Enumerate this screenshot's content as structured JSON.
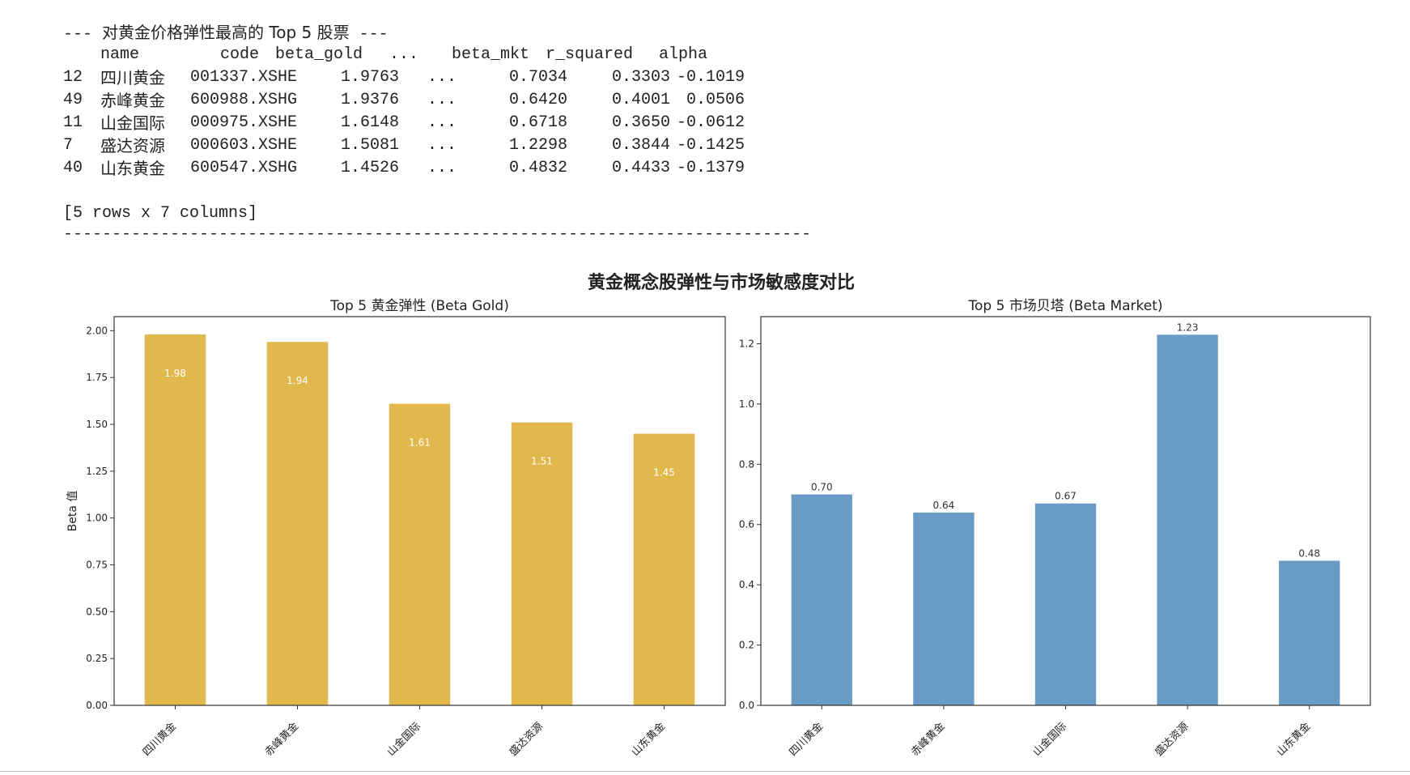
{
  "output": {
    "heading_prefix": "---",
    "heading_text": "对黄金价格弹性最高的 Top 5 股票",
    "heading_suffix": "---",
    "columns": [
      "name",
      "code",
      "beta_gold",
      "...",
      "beta_mkt",
      "r_squared",
      "alpha"
    ],
    "rows": [
      {
        "index": "12",
        "name": "四川黄金",
        "code": "001337.XSHE",
        "beta_gold": "1.9763",
        "dots": "...",
        "beta_mkt": "0.7034",
        "r_squared": "0.3303",
        "alpha": "-0.1019"
      },
      {
        "index": "49",
        "name": "赤峰黄金",
        "code": "600988.XSHG",
        "beta_gold": "1.9376",
        "dots": "...",
        "beta_mkt": "0.6420",
        "r_squared": "0.4001",
        "alpha": "0.0506"
      },
      {
        "index": "11",
        "name": "山金国际",
        "code": "000975.XSHE",
        "beta_gold": "1.6148",
        "dots": "...",
        "beta_mkt": "0.6718",
        "r_squared": "0.3650",
        "alpha": "-0.0612"
      },
      {
        "index": "7",
        "name": "盛达资源",
        "code": "000603.XSHE",
        "beta_gold": "1.5081",
        "dots": "...",
        "beta_mkt": "1.2298",
        "r_squared": "0.3844",
        "alpha": "-0.1425"
      },
      {
        "index": "40",
        "name": "山东黄金",
        "code": "600547.XSHG",
        "beta_gold": "1.4526",
        "dots": "...",
        "beta_mkt": "0.4832",
        "r_squared": "0.4433",
        "alpha": "-0.1379"
      }
    ],
    "shape_note": "[5 rows x 7 columns]",
    "separator": "--------------------------------------------------------------------------------"
  },
  "chart_data": [
    {
      "type": "bar",
      "suptitle": "黄金概念股弹性与市场敏感度对比",
      "title": "Top 5 黄金弹性 (Beta Gold)",
      "categories": [
        "四川黄金",
        "赤峰黄金",
        "山金国际",
        "盛达资源",
        "山东黄金"
      ],
      "values": [
        1.98,
        1.94,
        1.61,
        1.51,
        1.45
      ],
      "data_labels": [
        "1.98",
        "1.94",
        "1.61",
        "1.51",
        "1.45"
      ],
      "ylabel": "Beta 值",
      "xlabel": "",
      "ylim": [
        0,
        2.075
      ],
      "yticks": [
        "0.00",
        "0.25",
        "0.50",
        "0.75",
        "1.00",
        "1.25",
        "1.50",
        "1.75",
        "2.00"
      ],
      "ytick_values": [
        0,
        0.25,
        0.5,
        0.75,
        1.0,
        1.25,
        1.5,
        1.75,
        2.0
      ],
      "color": "#e0b84c",
      "label_color": "#ffffff",
      "label_position": "inside"
    },
    {
      "type": "bar",
      "title": "Top 5 市场贝塔 (Beta Market)",
      "categories": [
        "四川黄金",
        "赤峰黄金",
        "山金国际",
        "盛达资源",
        "山东黄金"
      ],
      "values": [
        0.7,
        0.64,
        0.67,
        1.23,
        0.48
      ],
      "data_labels": [
        "0.70",
        "0.64",
        "0.67",
        "1.23",
        "0.48"
      ],
      "ylabel": "",
      "xlabel": "",
      "ylim": [
        0,
        1.29
      ],
      "yticks": [
        "0.0",
        "0.2",
        "0.4",
        "0.6",
        "0.8",
        "1.0",
        "1.2"
      ],
      "ytick_values": [
        0,
        0.2,
        0.4,
        0.6,
        0.8,
        1.0,
        1.2
      ],
      "color": "#6a9bc5",
      "label_color": "#333333",
      "label_position": "above"
    }
  ]
}
